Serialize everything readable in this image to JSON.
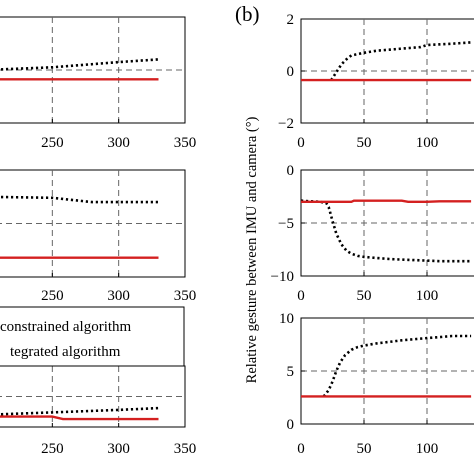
{
  "panel_label": "(b)",
  "ylabel_right": "Relative gesture between IMU and camera (°)",
  "legend": {
    "items": [
      {
        "label": "constrained algorithm",
        "style": "dotted",
        "color": "#000000"
      },
      {
        "label": "tegrated algorithm",
        "style": "solid",
        "color": "#d42020"
      }
    ]
  },
  "colors": {
    "dotted_series": "#000000",
    "solid_series": "#d42020",
    "grid": "#666666"
  },
  "chart_data": [
    {
      "type": "line",
      "panel": "left-1",
      "xlim": [
        200,
        350
      ],
      "ylim": [
        -2,
        2
      ],
      "xticks": [
        "250",
        "300",
        "350"
      ],
      "yticks": [],
      "grid": true,
      "series": [
        {
          "style": "dotted",
          "x": [
            200,
            250,
            300,
            330
          ],
          "y": [
            0.0,
            0.1,
            0.3,
            0.4
          ]
        },
        {
          "style": "solid",
          "x": [
            200,
            250,
            300,
            330
          ],
          "y": [
            -0.35,
            -0.35,
            -0.35,
            -0.35
          ]
        }
      ]
    },
    {
      "type": "line",
      "panel": "left-2",
      "xlim": [
        200,
        350
      ],
      "ylim": [
        -10,
        0
      ],
      "xticks": [
        "250",
        "300",
        "350"
      ],
      "yticks": [],
      "grid": true,
      "series": [
        {
          "style": "dotted",
          "x": [
            200,
            250,
            280,
            330
          ],
          "y": [
            -2.5,
            -2.6,
            -3.0,
            -3.0
          ]
        },
        {
          "style": "solid",
          "x": [
            200,
            250,
            300,
            330
          ],
          "y": [
            -8.2,
            -8.2,
            -8.2,
            -8.2
          ]
        }
      ]
    },
    {
      "type": "line",
      "panel": "left-3",
      "xlim": [
        200,
        350
      ],
      "ylim": [
        0,
        10
      ],
      "xticks": [
        "250",
        "300",
        "350"
      ],
      "yticks": [],
      "grid": true,
      "series": [
        {
          "style": "dotted",
          "x": [
            200,
            250,
            300,
            330
          ],
          "y": [
            2.0,
            2.4,
            2.8,
            3.1
          ]
        },
        {
          "style": "solid",
          "x": [
            200,
            250,
            258,
            300,
            330
          ],
          "y": [
            1.7,
            1.7,
            1.3,
            1.3,
            1.3
          ]
        }
      ]
    },
    {
      "type": "line",
      "panel": "right-1",
      "xlim": [
        0,
        150
      ],
      "ylim": [
        -2,
        2
      ],
      "xticks": [
        "0",
        "50",
        "100"
      ],
      "yticks": [
        "2",
        "0",
        "−2"
      ],
      "grid": true,
      "series": [
        {
          "style": "dotted",
          "x": [
            24,
            28,
            32,
            36,
            40,
            45,
            50,
            60,
            70,
            80,
            90,
            95,
            100,
            120,
            135
          ],
          "y": [
            -0.35,
            -0.05,
            0.25,
            0.45,
            0.6,
            0.65,
            0.7,
            0.78,
            0.82,
            0.86,
            0.9,
            0.92,
            1.0,
            1.05,
            1.1
          ]
        },
        {
          "style": "solid",
          "x": [
            0,
            135
          ],
          "y": [
            -0.35,
            -0.35
          ]
        }
      ]
    },
    {
      "type": "line",
      "panel": "right-2",
      "xlim": [
        0,
        150
      ],
      "ylim": [
        -10,
        0
      ],
      "xticks": [
        "0",
        "50",
        "100"
      ],
      "yticks": [
        "0",
        "−5",
        "−10"
      ],
      "grid": true,
      "series": [
        {
          "style": "dotted",
          "x": [
            0,
            15,
            20,
            22,
            25,
            28,
            32,
            36,
            40,
            45,
            50,
            60,
            70,
            80,
            90,
            100,
            110,
            120,
            135
          ],
          "y": [
            -2.9,
            -3.0,
            -3.1,
            -3.5,
            -4.8,
            -6.0,
            -7.0,
            -7.6,
            -7.9,
            -8.1,
            -8.2,
            -8.3,
            -8.4,
            -8.45,
            -8.5,
            -8.55,
            -8.6,
            -8.6,
            -8.6
          ]
        },
        {
          "style": "solid",
          "x": [
            0,
            40,
            42,
            80,
            85,
            100,
            110,
            135
          ],
          "y": [
            -3.0,
            -3.0,
            -2.9,
            -2.9,
            -3.0,
            -3.0,
            -2.95,
            -2.95
          ]
        }
      ]
    },
    {
      "type": "line",
      "panel": "right-3",
      "xlim": [
        0,
        150
      ],
      "ylim": [
        0,
        10
      ],
      "xticks": [
        "0",
        "50",
        "100"
      ],
      "yticks": [
        "10",
        "5",
        "0"
      ],
      "grid": true,
      "series": [
        {
          "style": "dotted",
          "x": [
            18,
            22,
            25,
            28,
            31,
            35,
            40,
            45,
            50,
            60,
            70,
            80,
            90,
            100,
            110,
            120,
            135
          ],
          "y": [
            2.6,
            3.2,
            4.0,
            5.0,
            5.8,
            6.5,
            7.0,
            7.25,
            7.4,
            7.6,
            7.75,
            7.9,
            8.0,
            8.1,
            8.2,
            8.3,
            8.3
          ]
        },
        {
          "style": "solid",
          "x": [
            0,
            135
          ],
          "y": [
            2.6,
            2.6
          ]
        }
      ]
    }
  ]
}
